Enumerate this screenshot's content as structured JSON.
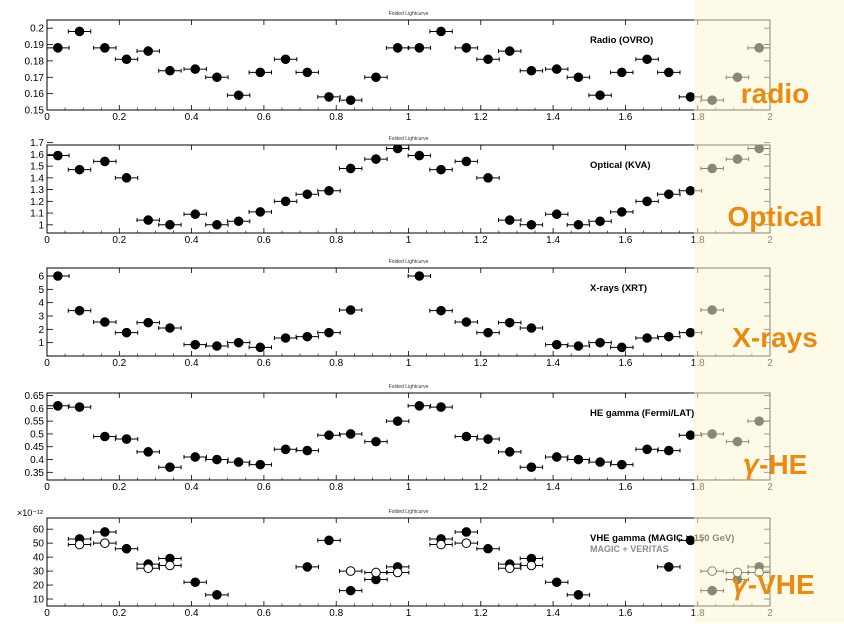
{
  "figure": {
    "highlight_color": "#fbf6d3",
    "band_labels": [
      "radio",
      "Optical",
      "X-rays",
      "𝛾-HE",
      "𝛾-VHE"
    ],
    "band_label_color": "#e98a12"
  },
  "chart_data": [
    {
      "type": "scatter",
      "title": "Folded Lightcurve",
      "label": "Radio (OVRO)",
      "xlim": [
        0,
        2
      ],
      "ylim": [
        0.15,
        0.205
      ],
      "xticks": [
        "0",
        "0.2",
        "0.4",
        "0.6",
        "0.8",
        "1",
        "1.2",
        "1.4",
        "1.6",
        "1.8",
        "2"
      ],
      "yticks": [
        "0.15",
        "0.16",
        "0.17",
        "0.18",
        "0.19",
        "0.2"
      ],
      "grid": false,
      "series": [
        {
          "marker": "filled",
          "points": [
            {
              "x": 0.03,
              "y": 0.188
            },
            {
              "x": 0.09,
              "y": 0.198
            },
            {
              "x": 0.16,
              "y": 0.188
            },
            {
              "x": 0.22,
              "y": 0.181
            },
            {
              "x": 0.28,
              "y": 0.186
            },
            {
              "x": 0.34,
              "y": 0.174
            },
            {
              "x": 0.41,
              "y": 0.175
            },
            {
              "x": 0.47,
              "y": 0.17
            },
            {
              "x": 0.53,
              "y": 0.159
            },
            {
              "x": 0.59,
              "y": 0.173
            },
            {
              "x": 0.66,
              "y": 0.181
            },
            {
              "x": 0.72,
              "y": 0.173
            },
            {
              "x": 0.78,
              "y": 0.158
            },
            {
              "x": 0.84,
              "y": 0.156
            },
            {
              "x": 0.91,
              "y": 0.17
            },
            {
              "x": 0.97,
              "y": 0.188
            },
            {
              "x": 1.03,
              "y": 0.188
            },
            {
              "x": 1.09,
              "y": 0.198
            },
            {
              "x": 1.16,
              "y": 0.188
            },
            {
              "x": 1.22,
              "y": 0.181
            },
            {
              "x": 1.28,
              "y": 0.186
            },
            {
              "x": 1.34,
              "y": 0.174
            },
            {
              "x": 1.41,
              "y": 0.175
            },
            {
              "x": 1.47,
              "y": 0.17
            },
            {
              "x": 1.53,
              "y": 0.159
            },
            {
              "x": 1.59,
              "y": 0.173
            },
            {
              "x": 1.66,
              "y": 0.181
            },
            {
              "x": 1.72,
              "y": 0.173
            },
            {
              "x": 1.78,
              "y": 0.158
            },
            {
              "x": 1.84,
              "y": 0.156
            },
            {
              "x": 1.91,
              "y": 0.17
            },
            {
              "x": 1.97,
              "y": 0.188
            }
          ]
        }
      ]
    },
    {
      "type": "scatter",
      "title": "Folded Lightcurve",
      "label": "Optical (KVA)",
      "xlim": [
        0,
        2
      ],
      "ylim": [
        0.93,
        1.68
      ],
      "xticks": [
        "0",
        "0.2",
        "0.4",
        "0.6",
        "0.8",
        "1",
        "1.2",
        "1.4",
        "1.6",
        "1.8",
        "2"
      ],
      "yticks": [
        "1",
        "1.1",
        "1.2",
        "1.3",
        "1.4",
        "1.5",
        "1.6",
        "1.7"
      ],
      "grid": false,
      "series": [
        {
          "marker": "filled",
          "points": [
            {
              "x": 0.03,
              "y": 1.59
            },
            {
              "x": 0.09,
              "y": 1.47
            },
            {
              "x": 0.16,
              "y": 1.54
            },
            {
              "x": 0.22,
              "y": 1.4
            },
            {
              "x": 0.28,
              "y": 1.04
            },
            {
              "x": 0.34,
              "y": 1.0
            },
            {
              "x": 0.41,
              "y": 1.09
            },
            {
              "x": 0.47,
              "y": 1.0
            },
            {
              "x": 0.53,
              "y": 1.03
            },
            {
              "x": 0.59,
              "y": 1.11
            },
            {
              "x": 0.66,
              "y": 1.2
            },
            {
              "x": 0.72,
              "y": 1.26
            },
            {
              "x": 0.78,
              "y": 1.29
            },
            {
              "x": 0.84,
              "y": 1.48
            },
            {
              "x": 0.91,
              "y": 1.56
            },
            {
              "x": 0.97,
              "y": 1.65
            },
            {
              "x": 1.03,
              "y": 1.59
            },
            {
              "x": 1.09,
              "y": 1.47
            },
            {
              "x": 1.16,
              "y": 1.54
            },
            {
              "x": 1.22,
              "y": 1.4
            },
            {
              "x": 1.28,
              "y": 1.04
            },
            {
              "x": 1.34,
              "y": 1.0
            },
            {
              "x": 1.41,
              "y": 1.09
            },
            {
              "x": 1.47,
              "y": 1.0
            },
            {
              "x": 1.53,
              "y": 1.03
            },
            {
              "x": 1.59,
              "y": 1.11
            },
            {
              "x": 1.66,
              "y": 1.2
            },
            {
              "x": 1.72,
              "y": 1.26
            },
            {
              "x": 1.78,
              "y": 1.29
            },
            {
              "x": 1.84,
              "y": 1.48
            },
            {
              "x": 1.91,
              "y": 1.56
            },
            {
              "x": 1.97,
              "y": 1.65
            }
          ]
        }
      ]
    },
    {
      "type": "scatter",
      "title": "Folded Lightcurve",
      "label": "X-rays (XRT)",
      "xlim": [
        0,
        2
      ],
      "ylim": [
        0,
        6.6
      ],
      "xticks": [
        "0",
        "0.2",
        "0.4",
        "0.6",
        "0.8",
        "1",
        "1.2",
        "1.4",
        "1.6",
        "1.8",
        "2"
      ],
      "yticks": [
        "1",
        "2",
        "3",
        "4",
        "5",
        "6"
      ],
      "grid": false,
      "series": [
        {
          "marker": "filled",
          "points": [
            {
              "x": 0.03,
              "y": 6.0
            },
            {
              "x": 0.09,
              "y": 3.4
            },
            {
              "x": 0.16,
              "y": 2.55
            },
            {
              "x": 0.22,
              "y": 1.75
            },
            {
              "x": 0.28,
              "y": 2.5
            },
            {
              "x": 0.34,
              "y": 2.1
            },
            {
              "x": 0.41,
              "y": 0.85
            },
            {
              "x": 0.47,
              "y": 0.75
            },
            {
              "x": 0.53,
              "y": 1.0
            },
            {
              "x": 0.59,
              "y": 0.65
            },
            {
              "x": 0.66,
              "y": 1.35
            },
            {
              "x": 0.72,
              "y": 1.45
            },
            {
              "x": 0.78,
              "y": 1.75
            },
            {
              "x": 0.84,
              "y": 3.45
            },
            {
              "x": 1.03,
              "y": 6.0
            },
            {
              "x": 1.09,
              "y": 3.4
            },
            {
              "x": 1.16,
              "y": 2.55
            },
            {
              "x": 1.22,
              "y": 1.75
            },
            {
              "x": 1.28,
              "y": 2.5
            },
            {
              "x": 1.34,
              "y": 2.1
            },
            {
              "x": 1.41,
              "y": 0.85
            },
            {
              "x": 1.47,
              "y": 0.75
            },
            {
              "x": 1.53,
              "y": 1.0
            },
            {
              "x": 1.59,
              "y": 0.65
            },
            {
              "x": 1.66,
              "y": 1.35
            },
            {
              "x": 1.72,
              "y": 1.45
            },
            {
              "x": 1.78,
              "y": 1.75
            },
            {
              "x": 1.84,
              "y": 3.45
            }
          ]
        }
      ]
    },
    {
      "type": "scatter",
      "title": "Folded Lightcurve",
      "label": "HE gamma (Fermi/LAT)",
      "xlim": [
        0,
        2
      ],
      "ylim": [
        0.32,
        0.66
      ],
      "xticks": [
        "0",
        "0.2",
        "0.4",
        "0.6",
        "0.8",
        "1",
        "1.2",
        "1.4",
        "1.6",
        "1.8",
        "2"
      ],
      "yticks": [
        "0.35",
        "0.4",
        "0.45",
        "0.5",
        "0.55",
        "0.6",
        "0.65"
      ],
      "grid": false,
      "series": [
        {
          "marker": "filled",
          "points": [
            {
              "x": 0.03,
              "y": 0.61
            },
            {
              "x": 0.09,
              "y": 0.605
            },
            {
              "x": 0.16,
              "y": 0.49
            },
            {
              "x": 0.22,
              "y": 0.48
            },
            {
              "x": 0.28,
              "y": 0.43
            },
            {
              "x": 0.34,
              "y": 0.37
            },
            {
              "x": 0.41,
              "y": 0.41
            },
            {
              "x": 0.47,
              "y": 0.4
            },
            {
              "x": 0.53,
              "y": 0.39
            },
            {
              "x": 0.59,
              "y": 0.38
            },
            {
              "x": 0.66,
              "y": 0.44
            },
            {
              "x": 0.72,
              "y": 0.435
            },
            {
              "x": 0.78,
              "y": 0.495
            },
            {
              "x": 0.84,
              "y": 0.5
            },
            {
              "x": 0.91,
              "y": 0.47
            },
            {
              "x": 0.97,
              "y": 0.55
            },
            {
              "x": 1.03,
              "y": 0.61
            },
            {
              "x": 1.09,
              "y": 0.605
            },
            {
              "x": 1.16,
              "y": 0.49
            },
            {
              "x": 1.22,
              "y": 0.48
            },
            {
              "x": 1.28,
              "y": 0.43
            },
            {
              "x": 1.34,
              "y": 0.37
            },
            {
              "x": 1.41,
              "y": 0.41
            },
            {
              "x": 1.47,
              "y": 0.4
            },
            {
              "x": 1.53,
              "y": 0.39
            },
            {
              "x": 1.59,
              "y": 0.38
            },
            {
              "x": 1.66,
              "y": 0.44
            },
            {
              "x": 1.72,
              "y": 0.435
            },
            {
              "x": 1.78,
              "y": 0.495
            },
            {
              "x": 1.84,
              "y": 0.5
            },
            {
              "x": 1.91,
              "y": 0.47
            },
            {
              "x": 1.97,
              "y": 0.55
            }
          ]
        }
      ]
    },
    {
      "type": "scatter",
      "title": "Folded Lightcurve",
      "label": "VHE gamma (MAGIC > 150 GeV)",
      "label2": "MAGIC + VERITAS",
      "exponent": "×10⁻¹²",
      "xlim": [
        0,
        2
      ],
      "ylim": [
        5,
        68
      ],
      "xticks": [
        "0",
        "0.2",
        "0.4",
        "0.6",
        "0.8",
        "1",
        "1.2",
        "1.4",
        "1.6",
        "1.8",
        "2"
      ],
      "yticks": [
        "10",
        "20",
        "30",
        "40",
        "50",
        "60"
      ],
      "grid": false,
      "series": [
        {
          "name": "VHE gamma (MAGIC > 150 GeV)",
          "marker": "filled",
          "points": [
            {
              "x": 0.09,
              "y": 53
            },
            {
              "x": 0.16,
              "y": 58
            },
            {
              "x": 0.22,
              "y": 46
            },
            {
              "x": 0.28,
              "y": 35
            },
            {
              "x": 0.34,
              "y": 39
            },
            {
              "x": 0.41,
              "y": 22
            },
            {
              "x": 0.47,
              "y": 13
            },
            {
              "x": 0.72,
              "y": 33
            },
            {
              "x": 0.78,
              "y": 52
            },
            {
              "x": 0.84,
              "y": 16
            },
            {
              "x": 0.91,
              "y": 24
            },
            {
              "x": 0.97,
              "y": 33
            },
            {
              "x": 1.09,
              "y": 53
            },
            {
              "x": 1.16,
              "y": 58
            },
            {
              "x": 1.22,
              "y": 46
            },
            {
              "x": 1.28,
              "y": 35
            },
            {
              "x": 1.34,
              "y": 39
            },
            {
              "x": 1.41,
              "y": 22
            },
            {
              "x": 1.47,
              "y": 13
            },
            {
              "x": 1.72,
              "y": 33
            },
            {
              "x": 1.78,
              "y": 52
            },
            {
              "x": 1.84,
              "y": 16
            },
            {
              "x": 1.91,
              "y": 24
            },
            {
              "x": 1.97,
              "y": 33
            }
          ]
        },
        {
          "name": "MAGIC + VERITAS",
          "marker": "open",
          "points": [
            {
              "x": 0.09,
              "y": 49
            },
            {
              "x": 0.16,
              "y": 50
            },
            {
              "x": 0.28,
              "y": 32
            },
            {
              "x": 0.34,
              "y": 34
            },
            {
              "x": 0.84,
              "y": 30
            },
            {
              "x": 0.91,
              "y": 29
            },
            {
              "x": 0.97,
              "y": 29
            },
            {
              "x": 1.09,
              "y": 49
            },
            {
              "x": 1.16,
              "y": 50
            },
            {
              "x": 1.28,
              "y": 32
            },
            {
              "x": 1.34,
              "y": 34
            },
            {
              "x": 1.84,
              "y": 30
            },
            {
              "x": 1.91,
              "y": 29
            },
            {
              "x": 1.97,
              "y": 29
            }
          ]
        }
      ]
    }
  ]
}
